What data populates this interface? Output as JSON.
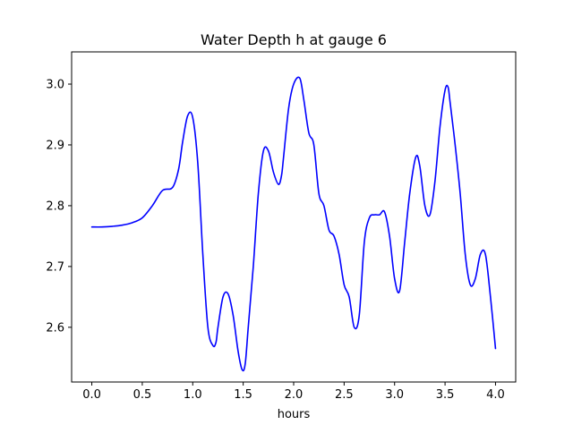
{
  "chart_data": {
    "type": "line",
    "title": "Water Depth h at gauge 6",
    "xlabel": "hours",
    "ylabel": "",
    "xlim": [
      -0.2,
      4.2
    ],
    "ylim": [
      2.51,
      3.053
    ],
    "x_ticks": [
      0.0,
      0.5,
      1.0,
      1.5,
      2.0,
      2.5,
      3.0,
      3.5,
      4.0
    ],
    "x_tick_labels": [
      "0.0",
      "0.5",
      "1.0",
      "1.5",
      "2.0",
      "2.5",
      "3.0",
      "3.5",
      "4.0"
    ],
    "y_ticks": [
      2.6,
      2.7,
      2.8,
      2.9,
      3.0
    ],
    "y_tick_labels": [
      "2.6",
      "2.7",
      "2.8",
      "2.9",
      "3.0"
    ],
    "grid": false,
    "legend": false,
    "series": [
      {
        "color": "#0000ff",
        "x": [
          0.0,
          0.1,
          0.2,
          0.3,
          0.4,
          0.5,
          0.6,
          0.7,
          0.8,
          0.86,
          0.9,
          0.95,
          1.0,
          1.05,
          1.1,
          1.15,
          1.2,
          1.23,
          1.25,
          1.3,
          1.35,
          1.4,
          1.45,
          1.49,
          1.52,
          1.55,
          1.6,
          1.65,
          1.7,
          1.75,
          1.8,
          1.85,
          1.88,
          1.9,
          1.95,
          2.0,
          2.06,
          2.1,
          2.15,
          2.2,
          2.25,
          2.3,
          2.35,
          2.4,
          2.45,
          2.5,
          2.55,
          2.6,
          2.65,
          2.7,
          2.75,
          2.8,
          2.85,
          2.9,
          2.95,
          3.0,
          3.05,
          3.1,
          3.15,
          3.21,
          3.25,
          3.3,
          3.35,
          3.4,
          3.45,
          3.5,
          3.53,
          3.55,
          3.6,
          3.65,
          3.7,
          3.75,
          3.8,
          3.85,
          3.9,
          3.95,
          4.0
        ],
        "y": [
          2.765,
          2.765,
          2.766,
          2.768,
          2.772,
          2.78,
          2.8,
          2.825,
          2.83,
          2.86,
          2.905,
          2.948,
          2.945,
          2.87,
          2.72,
          2.6,
          2.57,
          2.575,
          2.6,
          2.65,
          2.655,
          2.62,
          2.56,
          2.53,
          2.54,
          2.6,
          2.7,
          2.82,
          2.89,
          2.89,
          2.855,
          2.835,
          2.85,
          2.88,
          2.96,
          3.0,
          3.01,
          2.975,
          2.92,
          2.9,
          2.82,
          2.8,
          2.76,
          2.75,
          2.72,
          2.67,
          2.65,
          2.6,
          2.62,
          2.74,
          2.78,
          2.785,
          2.785,
          2.79,
          2.75,
          2.68,
          2.66,
          2.74,
          2.82,
          2.88,
          2.865,
          2.8,
          2.785,
          2.84,
          2.93,
          2.99,
          2.995,
          2.97,
          2.9,
          2.82,
          2.72,
          2.67,
          2.68,
          2.72,
          2.72,
          2.65,
          2.565
        ]
      }
    ]
  }
}
